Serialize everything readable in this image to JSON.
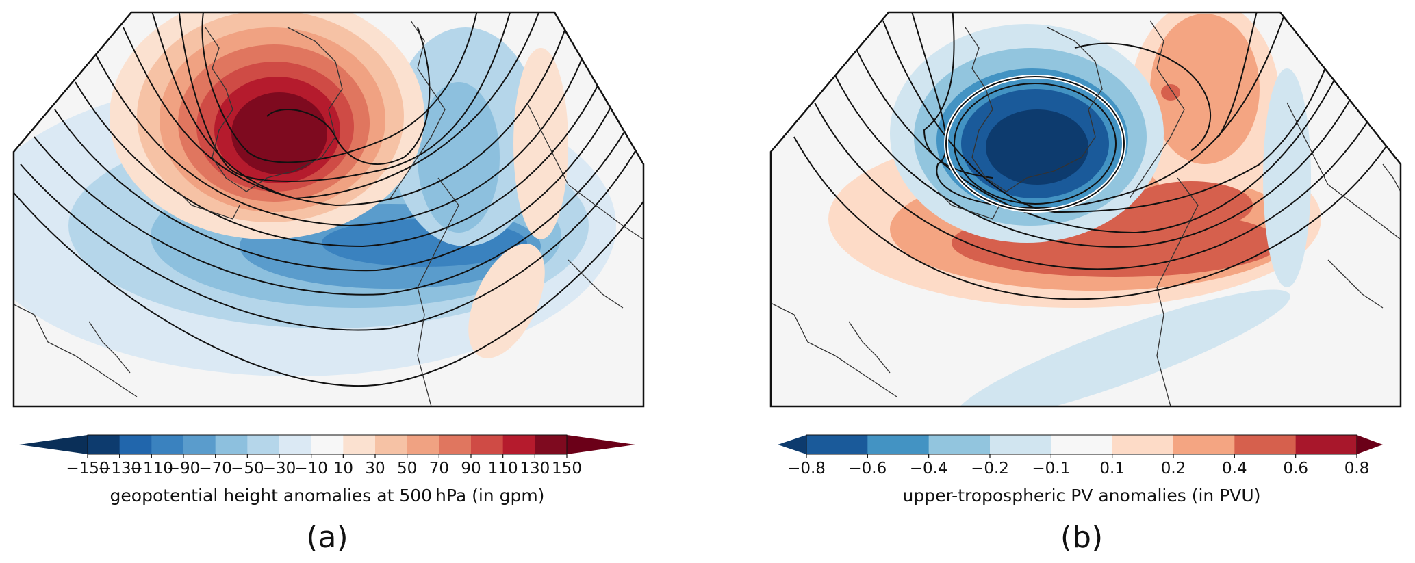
{
  "panels": [
    {
      "letter": "(a)",
      "colorbar": {
        "label": "geopotential height anomalies at 500 hPa (in gpm)",
        "ticks": [
          "−150",
          "−130",
          "−110",
          "−90",
          "−70",
          "−50",
          "−30",
          "−10",
          "10",
          "30",
          "50",
          "70",
          "90",
          "110",
          "130",
          "150"
        ],
        "colors": [
          "#0d3b6e",
          "#2166ac",
          "#3a82bf",
          "#5a9ccc",
          "#8dc0de",
          "#b5d6ea",
          "#dbe9f4",
          "#f7f7f7",
          "#fbe1d0",
          "#f6c2a5",
          "#f0a282",
          "#e0765f",
          "#cf4b45",
          "#b51b2d",
          "#7e0a1f"
        ],
        "extend_low_color": "#0a2f58",
        "extend_high_color": "#6b0018"
      }
    },
    {
      "letter": "(b)",
      "colorbar": {
        "label": "upper-tropospheric PV anomalies (in PVU)",
        "ticks": [
          "−0.8",
          "−0.6",
          "−0.4",
          "−0.2",
          "−0.1",
          "0.1",
          "0.2",
          "0.4",
          "0.6",
          "0.8"
        ],
        "colors": [
          "#1a5a9a",
          "#4393c3",
          "#92c5de",
          "#d1e5f0",
          "#f7f7f7",
          "#fddbc7",
          "#f4a582",
          "#d6604d",
          "#a8172b"
        ],
        "extend_low_color": "#0d3b6e",
        "extend_high_color": "#6b0018"
      }
    }
  ]
}
